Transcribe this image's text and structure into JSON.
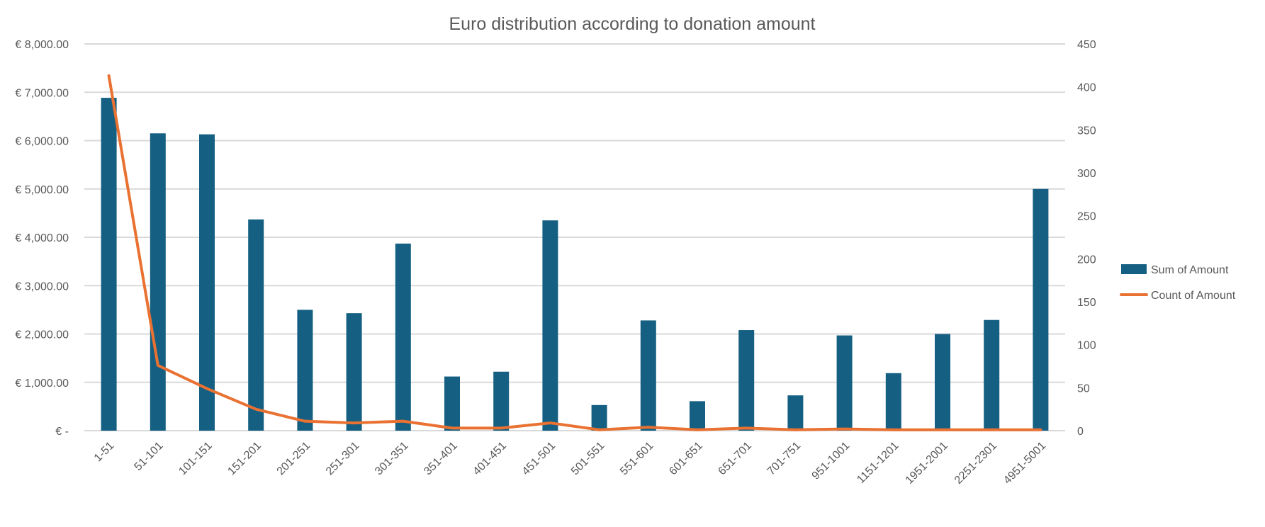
{
  "chart_data": {
    "type": "bar+line",
    "title": "Euro distribution according to donation amount",
    "categories": [
      "1-51",
      "51-101",
      "101-151",
      "151-201",
      "201-251",
      "251-301",
      "301-351",
      "351-401",
      "401-451",
      "451-501",
      "501-551",
      "551-601",
      "601-651",
      "651-701",
      "701-751",
      "951-1001",
      "1151-1201",
      "1951-2001",
      "2251-2301",
      "4951-5001"
    ],
    "series": [
      {
        "name": "Sum of Amount",
        "type": "bar",
        "axis": "left",
        "color": "#156082",
        "values": [
          6885,
          6150,
          6130,
          4370,
          2500,
          2430,
          3870,
          1120,
          1220,
          4350,
          530,
          2280,
          610,
          2080,
          730,
          1970,
          1190,
          2000,
          2290,
          5000
        ]
      },
      {
        "name": "Count of Amount",
        "type": "line",
        "axis": "right",
        "color": "#E97132",
        "values": [
          413,
          76,
          49,
          25,
          11,
          9,
          11,
          3,
          3,
          9,
          1,
          4,
          1,
          3,
          1,
          2,
          1,
          1,
          1,
          1
        ]
      }
    ],
    "left_axis": {
      "min": 0,
      "max": 8000,
      "step": 1000,
      "tick_labels": [
        "€ -",
        "€ 1,000.00",
        "€ 2,000.00",
        "€ 3,000.00",
        "€ 4,000.00",
        "€ 5,000.00",
        "€ 6,000.00",
        "€ 7,000.00",
        "€ 8,000.00"
      ]
    },
    "right_axis": {
      "min": 0,
      "max": 450,
      "step": 50,
      "tick_labels": [
        "0",
        "50",
        "100",
        "150",
        "200",
        "250",
        "300",
        "350",
        "400",
        "450"
      ]
    },
    "grid": true,
    "legend_position": "right"
  }
}
